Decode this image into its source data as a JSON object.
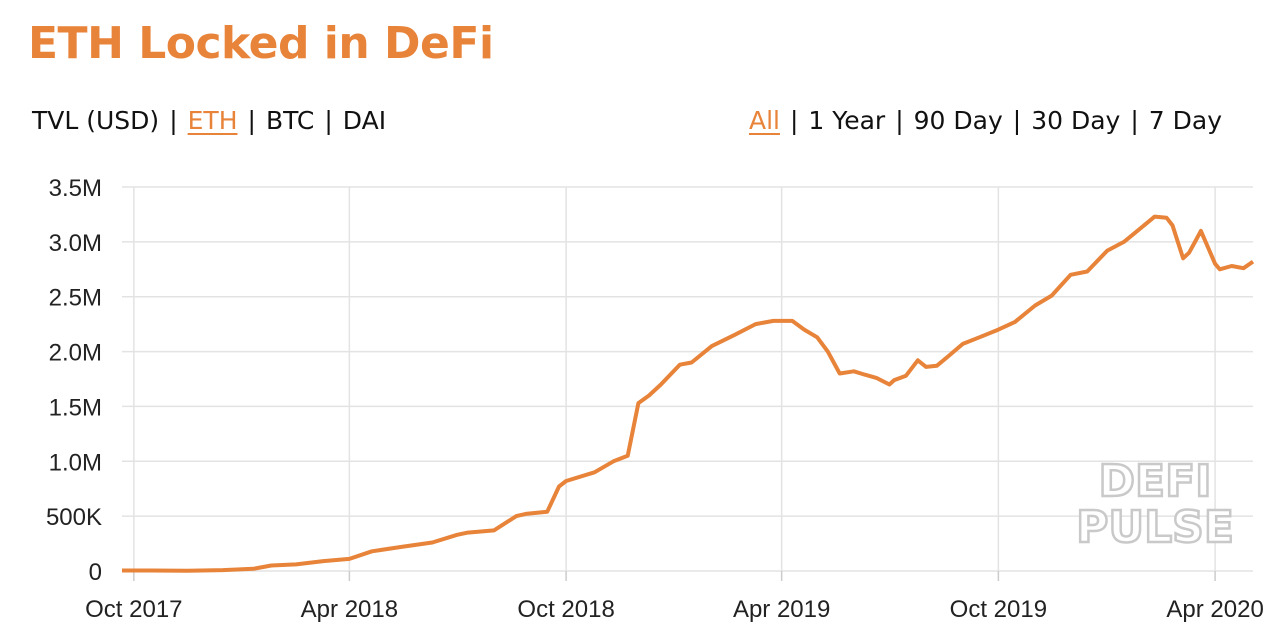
{
  "title": "ETH Locked in DeFi",
  "colors": {
    "accent": "#e8833a",
    "grid": "#e3e3e3",
    "axis_text": "#222222"
  },
  "metric_toggle": {
    "items": [
      {
        "label": "TVL (USD)",
        "active": false
      },
      {
        "label": "ETH",
        "active": true
      },
      {
        "label": "BTC",
        "active": false
      },
      {
        "label": "DAI",
        "active": false
      }
    ],
    "separator": "|"
  },
  "range_toggle": {
    "items": [
      {
        "label": "All",
        "active": true
      },
      {
        "label": "1 Year",
        "active": false
      },
      {
        "label": "90 Day",
        "active": false
      },
      {
        "label": "30 Day",
        "active": false
      },
      {
        "label": "7 Day",
        "active": false
      }
    ],
    "separator": "|"
  },
  "watermark": [
    "DEFI",
    "PULSE"
  ],
  "chart_data": {
    "type": "line",
    "title": "ETH Locked in DeFi",
    "xlabel": "",
    "ylabel": "",
    "grid": true,
    "x_ticks": [
      {
        "date": "2017-10-01",
        "label": "Oct 2017"
      },
      {
        "date": "2018-04-01",
        "label": "Apr 2018"
      },
      {
        "date": "2018-10-01",
        "label": "Oct 2018"
      },
      {
        "date": "2019-04-01",
        "label": "Apr 2019"
      },
      {
        "date": "2019-10-01",
        "label": "Oct 2019"
      },
      {
        "date": "2020-04-01",
        "label": "Apr 2020"
      }
    ],
    "y_ticks": [
      {
        "value": 0,
        "label": "0"
      },
      {
        "value": 500000,
        "label": "500K"
      },
      {
        "value": 1000000,
        "label": "1.0M"
      },
      {
        "value": 1500000,
        "label": "1.5M"
      },
      {
        "value": 2000000,
        "label": "2.0M"
      },
      {
        "value": 2500000,
        "label": "2.5M"
      },
      {
        "value": 3000000,
        "label": "3.0M"
      },
      {
        "value": 3500000,
        "label": "3.5M"
      }
    ],
    "ylim": [
      0,
      3500000
    ],
    "xlim": [
      "2017-09-21",
      "2020-05-03"
    ],
    "series": [
      {
        "x": [
          "2017-09-21",
          "2017-10-15",
          "2017-11-15",
          "2017-12-15",
          "2018-01-10",
          "2018-01-25",
          "2018-02-15",
          "2018-03-10",
          "2018-04-01",
          "2018-04-20",
          "2018-05-15",
          "2018-06-10",
          "2018-07-01",
          "2018-07-10",
          "2018-08-01",
          "2018-08-20",
          "2018-08-28",
          "2018-09-15",
          "2018-09-25",
          "2018-10-01",
          "2018-10-25",
          "2018-11-10",
          "2018-11-22",
          "2018-12-01",
          "2018-12-10",
          "2018-12-20",
          "2019-01-05",
          "2019-01-15",
          "2019-02-01",
          "2019-02-20",
          "2019-03-10",
          "2019-03-25",
          "2019-04-10",
          "2019-04-20",
          "2019-05-01",
          "2019-05-10",
          "2019-05-20",
          "2019-06-01",
          "2019-06-10",
          "2019-06-20",
          "2019-07-01",
          "2019-07-05",
          "2019-07-15",
          "2019-07-25",
          "2019-08-01",
          "2019-08-10",
          "2019-08-20",
          "2019-09-01",
          "2019-09-15",
          "2019-10-01",
          "2019-10-15",
          "2019-11-01",
          "2019-11-15",
          "2019-12-01",
          "2019-12-15",
          "2020-01-01",
          "2020-01-15",
          "2020-02-01",
          "2020-02-10",
          "2020-02-20",
          "2020-02-25",
          "2020-03-05",
          "2020-03-10",
          "2020-03-15",
          "2020-03-20",
          "2020-04-01",
          "2020-04-05",
          "2020-04-15",
          "2020-04-25",
          "2020-05-03"
        ],
        "y": [
          5000,
          5000,
          3000,
          8000,
          20000,
          50000,
          60000,
          90000,
          110000,
          180000,
          220000,
          260000,
          330000,
          350000,
          370000,
          500000,
          520000,
          540000,
          770000,
          820000,
          900000,
          1000000,
          1050000,
          1530000,
          1600000,
          1700000,
          1880000,
          1900000,
          2050000,
          2150000,
          2250000,
          2280000,
          2280000,
          2200000,
          2130000,
          2000000,
          1800000,
          1820000,
          1790000,
          1760000,
          1700000,
          1740000,
          1780000,
          1920000,
          1860000,
          1870000,
          1960000,
          2070000,
          2130000,
          2200000,
          2270000,
          2420000,
          2510000,
          2700000,
          2730000,
          2920000,
          3000000,
          3150000,
          3230000,
          3220000,
          3150000,
          2850000,
          2900000,
          3000000,
          3100000,
          2800000,
          2750000,
          2780000,
          2760000,
          2820000
        ]
      }
    ]
  }
}
